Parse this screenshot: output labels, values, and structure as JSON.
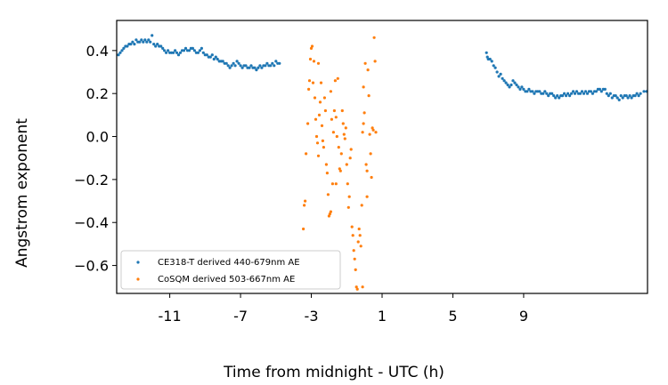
{
  "chart_data": {
    "type": "scatter",
    "title": "",
    "xlabel": "Time from midnight - UTC (h)",
    "ylabel": "Angstrom exponent",
    "xlim": [
      -14,
      16
    ],
    "ylim": [
      -0.73,
      0.54
    ],
    "x_ticks": [
      -11,
      -7,
      -3,
      1,
      5,
      9
    ],
    "x_tick_labels": [
      "-11",
      "-7",
      "-3",
      "1",
      "5",
      "9"
    ],
    "y_ticks": [
      0.4,
      0.2,
      0.0,
      -0.2,
      -0.4,
      -0.6
    ],
    "y_tick_labels": [
      "0.4",
      "0.2",
      "0.0",
      "−0.2",
      "−0.4",
      "−0.6"
    ],
    "grid": false,
    "legend_position": "lower-left",
    "series": [
      {
        "name": "CE318-T derived 440-679nm AE",
        "color": "#1f77b4",
        "points": [
          [
            -13.9,
            0.38
          ],
          [
            -13.8,
            0.39
          ],
          [
            -13.7,
            0.4
          ],
          [
            -13.6,
            0.41
          ],
          [
            -13.5,
            0.42
          ],
          [
            -13.4,
            0.42
          ],
          [
            -13.3,
            0.43
          ],
          [
            -13.2,
            0.43
          ],
          [
            -13.1,
            0.44
          ],
          [
            -13.0,
            0.43
          ],
          [
            -12.9,
            0.45
          ],
          [
            -12.8,
            0.44
          ],
          [
            -12.7,
            0.44
          ],
          [
            -12.6,
            0.45
          ],
          [
            -12.5,
            0.44
          ],
          [
            -12.4,
            0.45
          ],
          [
            -12.3,
            0.44
          ],
          [
            -12.2,
            0.45
          ],
          [
            -12.1,
            0.44
          ],
          [
            -12.0,
            0.47
          ],
          [
            -11.9,
            0.43
          ],
          [
            -11.8,
            0.42
          ],
          [
            -11.7,
            0.43
          ],
          [
            -11.6,
            0.42
          ],
          [
            -11.5,
            0.42
          ],
          [
            -11.4,
            0.41
          ],
          [
            -11.3,
            0.4
          ],
          [
            -11.2,
            0.39
          ],
          [
            -11.1,
            0.4
          ],
          [
            -11.0,
            0.39
          ],
          [
            -10.9,
            0.39
          ],
          [
            -10.8,
            0.39
          ],
          [
            -10.7,
            0.4
          ],
          [
            -10.6,
            0.39
          ],
          [
            -10.5,
            0.38
          ],
          [
            -10.4,
            0.39
          ],
          [
            -10.3,
            0.4
          ],
          [
            -10.2,
            0.4
          ],
          [
            -10.1,
            0.41
          ],
          [
            -10.0,
            0.4
          ],
          [
            -9.9,
            0.4
          ],
          [
            -9.8,
            0.41
          ],
          [
            -9.7,
            0.41
          ],
          [
            -9.6,
            0.4
          ],
          [
            -9.5,
            0.39
          ],
          [
            -9.4,
            0.39
          ],
          [
            -9.3,
            0.4
          ],
          [
            -9.2,
            0.41
          ],
          [
            -9.1,
            0.39
          ],
          [
            -9.0,
            0.38
          ],
          [
            -8.9,
            0.38
          ],
          [
            -8.8,
            0.37
          ],
          [
            -8.7,
            0.37
          ],
          [
            -8.6,
            0.38
          ],
          [
            -8.5,
            0.36
          ],
          [
            -8.4,
            0.37
          ],
          [
            -8.3,
            0.36
          ],
          [
            -8.2,
            0.35
          ],
          [
            -8.1,
            0.35
          ],
          [
            -8.0,
            0.35
          ],
          [
            -7.9,
            0.34
          ],
          [
            -7.8,
            0.34
          ],
          [
            -7.7,
            0.33
          ],
          [
            -7.6,
            0.32
          ],
          [
            -7.5,
            0.33
          ],
          [
            -7.4,
            0.34
          ],
          [
            -7.3,
            0.33
          ],
          [
            -7.2,
            0.35
          ],
          [
            -7.1,
            0.34
          ],
          [
            -7.0,
            0.33
          ],
          [
            -6.9,
            0.32
          ],
          [
            -6.8,
            0.33
          ],
          [
            -6.7,
            0.33
          ],
          [
            -6.6,
            0.32
          ],
          [
            -6.5,
            0.32
          ],
          [
            -6.4,
            0.33
          ],
          [
            -6.3,
            0.32
          ],
          [
            -6.2,
            0.32
          ],
          [
            -6.1,
            0.31
          ],
          [
            -6.0,
            0.32
          ],
          [
            -5.9,
            0.33
          ],
          [
            -5.8,
            0.32
          ],
          [
            -5.7,
            0.33
          ],
          [
            -5.6,
            0.33
          ],
          [
            -5.5,
            0.34
          ],
          [
            -5.4,
            0.33
          ],
          [
            -5.3,
            0.33
          ],
          [
            -5.2,
            0.34
          ],
          [
            -5.1,
            0.33
          ],
          [
            -5.0,
            0.35
          ],
          [
            -4.9,
            0.34
          ],
          [
            -4.8,
            0.34
          ],
          [
            6.9,
            0.39
          ],
          [
            6.95,
            0.37
          ],
          [
            7.0,
            0.36
          ],
          [
            7.1,
            0.36
          ],
          [
            7.2,
            0.35
          ],
          [
            7.3,
            0.33
          ],
          [
            7.4,
            0.32
          ],
          [
            7.5,
            0.3
          ],
          [
            7.6,
            0.28
          ],
          [
            7.7,
            0.29
          ],
          [
            7.8,
            0.27
          ],
          [
            7.9,
            0.26
          ],
          [
            8.0,
            0.25
          ],
          [
            8.1,
            0.24
          ],
          [
            8.2,
            0.23
          ],
          [
            8.3,
            0.24
          ],
          [
            8.4,
            0.26
          ],
          [
            8.5,
            0.25
          ],
          [
            8.6,
            0.24
          ],
          [
            8.7,
            0.23
          ],
          [
            8.8,
            0.22
          ],
          [
            8.9,
            0.23
          ],
          [
            9.0,
            0.22
          ],
          [
            9.1,
            0.21
          ],
          [
            9.2,
            0.21
          ],
          [
            9.3,
            0.22
          ],
          [
            9.4,
            0.21
          ],
          [
            9.5,
            0.21
          ],
          [
            9.6,
            0.2
          ],
          [
            9.7,
            0.21
          ],
          [
            9.8,
            0.21
          ],
          [
            9.9,
            0.21
          ],
          [
            10.0,
            0.2
          ],
          [
            10.1,
            0.2
          ],
          [
            10.2,
            0.21
          ],
          [
            10.3,
            0.2
          ],
          [
            10.4,
            0.19
          ],
          [
            10.5,
            0.2
          ],
          [
            10.6,
            0.2
          ],
          [
            10.7,
            0.19
          ],
          [
            10.8,
            0.18
          ],
          [
            10.9,
            0.19
          ],
          [
            11.0,
            0.18
          ],
          [
            11.1,
            0.19
          ],
          [
            11.2,
            0.19
          ],
          [
            11.3,
            0.2
          ],
          [
            11.4,
            0.19
          ],
          [
            11.5,
            0.2
          ],
          [
            11.6,
            0.19
          ],
          [
            11.7,
            0.2
          ],
          [
            11.8,
            0.21
          ],
          [
            11.9,
            0.2
          ],
          [
            12.0,
            0.21
          ],
          [
            12.1,
            0.2
          ],
          [
            12.2,
            0.2
          ],
          [
            12.3,
            0.21
          ],
          [
            12.4,
            0.2
          ],
          [
            12.5,
            0.21
          ],
          [
            12.6,
            0.2
          ],
          [
            12.7,
            0.21
          ],
          [
            12.8,
            0.21
          ],
          [
            12.9,
            0.2
          ],
          [
            13.0,
            0.21
          ],
          [
            13.1,
            0.21
          ],
          [
            13.2,
            0.22
          ],
          [
            13.3,
            0.22
          ],
          [
            13.4,
            0.21
          ],
          [
            13.5,
            0.22
          ],
          [
            13.6,
            0.22
          ],
          [
            13.7,
            0.2
          ],
          [
            13.8,
            0.19
          ],
          [
            13.9,
            0.2
          ],
          [
            14.0,
            0.18
          ],
          [
            14.1,
            0.19
          ],
          [
            14.2,
            0.19
          ],
          [
            14.3,
            0.18
          ],
          [
            14.4,
            0.17
          ],
          [
            14.5,
            0.19
          ],
          [
            14.6,
            0.18
          ],
          [
            14.7,
            0.19
          ],
          [
            14.8,
            0.19
          ],
          [
            14.9,
            0.18
          ],
          [
            15.0,
            0.19
          ],
          [
            15.1,
            0.18
          ],
          [
            15.2,
            0.19
          ],
          [
            15.3,
            0.19
          ],
          [
            15.4,
            0.2
          ],
          [
            15.5,
            0.19
          ],
          [
            15.6,
            0.2
          ],
          [
            15.8,
            0.21
          ],
          [
            15.95,
            0.21
          ]
        ]
      },
      {
        "name": "CoSQM derived 503-667nm AE",
        "color": "#ff7f0e",
        "points": [
          [
            -3.45,
            -0.43
          ],
          [
            -3.4,
            -0.32
          ],
          [
            -3.35,
            -0.3
          ],
          [
            -3.3,
            -0.08
          ],
          [
            -3.2,
            0.06
          ],
          [
            -3.15,
            0.22
          ],
          [
            -3.1,
            0.26
          ],
          [
            -3.05,
            0.36
          ],
          [
            -3.0,
            0.41
          ],
          [
            -2.95,
            0.42
          ],
          [
            -2.9,
            0.25
          ],
          [
            -2.85,
            0.35
          ],
          [
            -2.8,
            0.18
          ],
          [
            -2.75,
            0.08
          ],
          [
            -2.7,
            0.0
          ],
          [
            -2.65,
            -0.03
          ],
          [
            -2.6,
            0.34
          ],
          [
            -2.55,
            0.1
          ],
          [
            -2.5,
            0.16
          ],
          [
            -2.45,
            0.25
          ],
          [
            -2.4,
            0.05
          ],
          [
            -2.35,
            -0.02
          ],
          [
            -2.3,
            -0.05
          ],
          [
            -2.25,
            0.18
          ],
          [
            -2.2,
            0.12
          ],
          [
            -2.15,
            -0.13
          ],
          [
            -2.1,
            -0.17
          ],
          [
            -2.05,
            -0.27
          ],
          [
            -2.0,
            -0.37
          ],
          [
            -1.95,
            -0.36
          ],
          [
            -1.9,
            -0.35
          ],
          [
            -1.85,
            0.08
          ],
          [
            -1.8,
            -0.22
          ],
          [
            -1.75,
            0.02
          ],
          [
            -1.7,
            0.12
          ],
          [
            -1.65,
            0.26
          ],
          [
            -1.6,
            0.09
          ],
          [
            -1.55,
            0.0
          ],
          [
            -1.5,
            0.27
          ],
          [
            -1.45,
            -0.05
          ],
          [
            -1.4,
            -0.15
          ],
          [
            -1.35,
            -0.16
          ],
          [
            -1.3,
            -0.08
          ],
          [
            -1.25,
            0.12
          ],
          [
            -1.2,
            0.06
          ],
          [
            -1.15,
            0.01
          ],
          [
            -1.1,
            -0.01
          ],
          [
            -1.05,
            0.04
          ],
          [
            -1.0,
            -0.13
          ],
          [
            -0.95,
            -0.22
          ],
          [
            -0.9,
            -0.33
          ],
          [
            -0.85,
            -0.28
          ],
          [
            -0.8,
            -0.1
          ],
          [
            -0.75,
            -0.06
          ],
          [
            -0.7,
            -0.42
          ],
          [
            -0.65,
            -0.46
          ],
          [
            -0.6,
            -0.53
          ],
          [
            -0.55,
            -0.57
          ],
          [
            -0.5,
            -0.62
          ],
          [
            -0.45,
            -0.7
          ],
          [
            -0.4,
            -0.71
          ],
          [
            -0.35,
            -0.49
          ],
          [
            -0.3,
            -0.43
          ],
          [
            -0.25,
            -0.46
          ],
          [
            -0.2,
            -0.51
          ],
          [
            -0.15,
            -0.32
          ],
          [
            -0.1,
            0.02
          ],
          [
            -0.05,
            0.06
          ],
          [
            0.0,
            0.11
          ],
          [
            0.05,
            0.34
          ],
          [
            0.1,
            -0.13
          ],
          [
            0.15,
            -0.28
          ],
          [
            0.2,
            0.31
          ],
          [
            0.25,
            0.19
          ],
          [
            0.3,
            0.01
          ],
          [
            0.35,
            -0.08
          ],
          [
            0.4,
            -0.19
          ],
          [
            0.45,
            0.04
          ],
          [
            0.5,
            0.03
          ],
          [
            0.55,
            0.46
          ],
          [
            0.6,
            0.35
          ],
          [
            0.65,
            0.02
          ],
          [
            -0.05,
            0.23
          ],
          [
            -0.1,
            -0.7
          ],
          [
            0.15,
            -0.16
          ],
          [
            -1.6,
            -0.22
          ],
          [
            -2.6,
            -0.09
          ],
          [
            -1.9,
            0.21
          ]
        ]
      }
    ]
  }
}
